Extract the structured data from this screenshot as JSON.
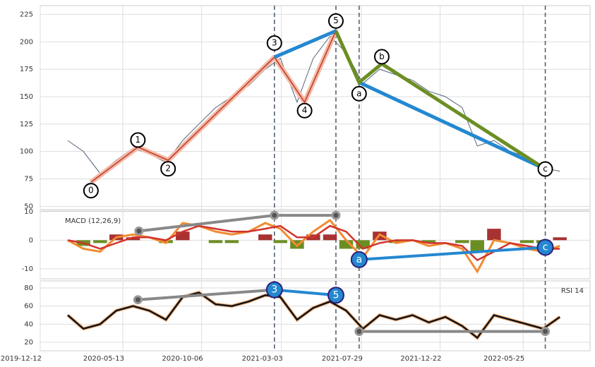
{
  "chart_data": [
    {
      "type": "price",
      "x": [
        "2020-02-01",
        "2020-03-01",
        "2020-04-01",
        "2020-05-01",
        "2020-06-01",
        "2020-07-01",
        "2020-08-01",
        "2020-09-01",
        "2020-10-01",
        "2020-11-01",
        "2020-12-01",
        "2021-01-01",
        "2021-02-01",
        "2021-03-01",
        "2021-04-01",
        "2021-05-01",
        "2021-06-01",
        "2021-07-01",
        "2021-08-01",
        "2021-09-01",
        "2021-10-01",
        "2021-11-01",
        "2021-12-01",
        "2022-01-01",
        "2022-02-01",
        "2022-03-01",
        "2022-04-01",
        "2022-05-01",
        "2022-06-01",
        "2022-07-01",
        "2022-08-01"
      ],
      "values": [
        110,
        100,
        80,
        92,
        103,
        98,
        90,
        110,
        125,
        140,
        150,
        160,
        175,
        185,
        145,
        185,
        205,
        190,
        162,
        175,
        170,
        165,
        155,
        150,
        140,
        105,
        110,
        100,
        95,
        85,
        82
      ],
      "color": "#56657a",
      "ylim": [
        47,
        233
      ],
      "yticks": [
        50,
        75,
        100,
        125,
        150,
        175,
        200,
        225
      ],
      "grid": true,
      "waves": {
        "labels": [
          "0",
          "1",
          "2",
          "3",
          "4",
          "5",
          "a",
          "b",
          "c"
        ],
        "x": [
          "2020-03-15",
          "2020-06-10",
          "2020-08-05",
          "2021-02-18",
          "2021-04-15",
          "2021-06-12",
          "2021-07-25",
          "2021-09-05",
          "2022-07-05"
        ],
        "values": [
          72,
          104,
          92,
          186,
          145,
          210,
          163,
          180,
          84
        ],
        "impulse_color": "#c0392b",
        "impulse_shade": "#f4b8a4",
        "correction_color": "#6b8e23",
        "trend_color": "#2488d0"
      }
    },
    {
      "type": "macd",
      "label": "MACD (12,26,9)",
      "macd": {
        "values": [
          0,
          -3,
          -4,
          1,
          2,
          1,
          -1,
          6,
          5,
          3,
          2,
          3,
          6,
          4,
          -2,
          3,
          7,
          0,
          -6,
          2,
          -1,
          0,
          -2,
          -1,
          -3,
          -11,
          0,
          -1,
          -3,
          -4,
          -2
        ],
        "color": "#f28a30"
      },
      "signal": {
        "values": [
          0,
          -1,
          -3,
          -1,
          1,
          1,
          0,
          3,
          5,
          4,
          3,
          3,
          4,
          5,
          1,
          1,
          5,
          3,
          -3,
          -1,
          0,
          0,
          -1,
          -1,
          -2,
          -7,
          -4,
          -1,
          -2,
          -3,
          -3
        ],
        "color": "#d0342c"
      },
      "histogram": {
        "values": [
          0,
          -2,
          -1,
          2,
          1,
          0,
          -1,
          3,
          0,
          -1,
          -1,
          0,
          2,
          -1,
          -3,
          2,
          2,
          -3,
          -3,
          3,
          -1,
          0,
          -1,
          0,
          -1,
          -4,
          4,
          0,
          -1,
          -1,
          1
        ],
        "up_color": "#a83232",
        "down_color": "#6b8e23"
      },
      "ylim": [
        -13.5,
        10.2
      ],
      "yticks": [
        -10,
        0,
        10
      ],
      "grid": true,
      "divergences": [
        {
          "x": [
            "2020-06-12",
            "2021-02-18",
            "2021-06-12"
          ],
          "values": [
            3.2,
            8.7,
            8.7
          ],
          "color": "#888888"
        },
        {
          "x": [
            "2021-07-25",
            "2022-07-05"
          ],
          "values": [
            -6.8,
            -2.5
          ],
          "labels": [
            "a",
            "c"
          ],
          "color": "#2488d0"
        }
      ]
    },
    {
      "type": "rsi",
      "label": "RSI 14",
      "values": [
        50,
        35,
        40,
        55,
        60,
        55,
        45,
        70,
        75,
        62,
        60,
        65,
        72,
        70,
        45,
        58,
        65,
        55,
        35,
        50,
        45,
        50,
        42,
        48,
        38,
        25,
        50,
        45,
        40,
        35,
        48
      ],
      "color": "#111111",
      "halo": "#f5b98a",
      "ylim": [
        10.7,
        87.8
      ],
      "yticks": [
        20,
        40,
        60,
        80
      ],
      "grid": true,
      "xlim": [
        "2019-12-12",
        "2022-09-26"
      ],
      "xticks": [
        "2019-12-12",
        "2020-05-13",
        "2020-10-06",
        "2021-03-03",
        "2021-07-29",
        "2021-12-22",
        "2022-05-25"
      ],
      "divergences": [
        {
          "x": [
            "2020-06-10",
            "2021-02-18"
          ],
          "values": [
            67,
            78
          ],
          "color": "#888888"
        },
        {
          "x": [
            "2021-02-18",
            "2021-06-12"
          ],
          "values": [
            78,
            72
          ],
          "labels": [
            "3",
            "5"
          ],
          "color": "#2488d0"
        },
        {
          "x": [
            "2021-07-25",
            "2022-07-05"
          ],
          "values": [
            32,
            32
          ],
          "color": "#888888"
        }
      ]
    }
  ]
}
